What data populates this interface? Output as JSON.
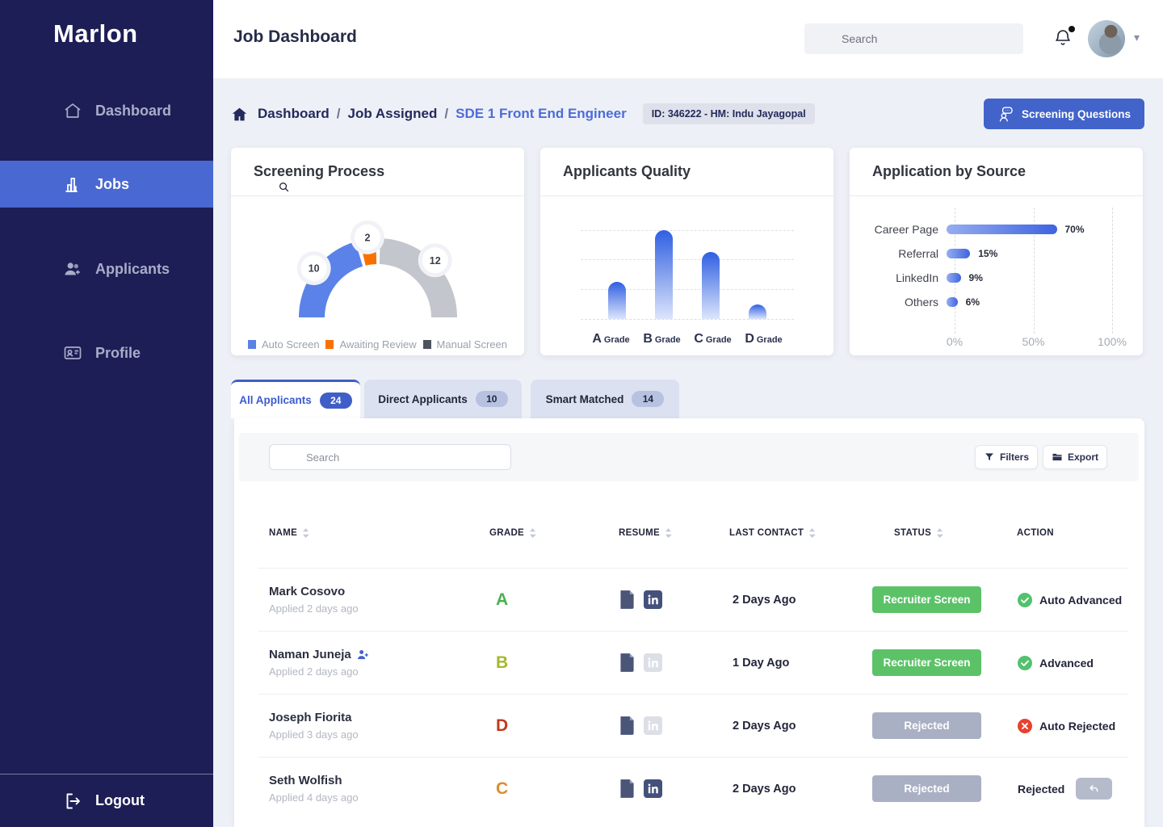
{
  "colors": {
    "accent": "#4263ca",
    "sidebar_bg": "#1d1e56",
    "active_nav": "#4a68d2",
    "link_blue": "#4d6cd9",
    "status_green": "#5cc268",
    "status_gray": "#a9b0c3",
    "content_bg": "#edf0f6"
  },
  "sidebar": {
    "logo": "Marlon",
    "items": [
      {
        "label": "Dashboard",
        "icon": "home-icon",
        "active": false
      },
      {
        "label": "Jobs",
        "icon": "bar-chart-icon",
        "active": true
      },
      {
        "label": "Applicants",
        "icon": "user-group-add-icon",
        "active": false
      },
      {
        "label": "Profile",
        "icon": "id-card-icon",
        "active": false
      }
    ],
    "logout_label": "Logout"
  },
  "topbar": {
    "title": "Job Dashboard",
    "search_placeholder": "Search"
  },
  "breadcrumb": {
    "root": "Dashboard",
    "section": "Job Assigned",
    "separator": "/",
    "current": "SDE 1 Front End Engineer",
    "id_badge": "ID: 346222 - HM: Indu Jayagopal",
    "action_label": "Screening Questions"
  },
  "chart_data": [
    {
      "type": "gauge",
      "title": "Screening Process",
      "total": 24,
      "segments": [
        {
          "label": "Auto Screen",
          "value": 10,
          "color": "#5b82e8"
        },
        {
          "label": "Awaiting Review",
          "value": 2,
          "color": "#fa7000"
        },
        {
          "label": "Manual Screen",
          "value": 12,
          "color": "#c3c6cc",
          "legend_color": "#4d5360"
        }
      ]
    },
    {
      "type": "bar",
      "title": "Applicants Quality",
      "categories": [
        "A",
        "B",
        "C",
        "D"
      ],
      "category_suffix": "Grade",
      "values": [
        5,
        12,
        9,
        2
      ],
      "ylim": [
        0,
        12
      ],
      "grid": "dashed-horizontal"
    },
    {
      "type": "hbar",
      "title": "Application by Source",
      "categories": [
        "Career Page",
        "Referral",
        "LinkedIn",
        "Others"
      ],
      "values": [
        70,
        15,
        9,
        6
      ],
      "value_labels": [
        "70%",
        "15%",
        "9%",
        "6%"
      ],
      "xticks": [
        "0%",
        "50%",
        "100%"
      ],
      "xlim": [
        0,
        100
      ],
      "grid": "dashed-vertical"
    }
  ],
  "tabs": [
    {
      "label": "All Applicants",
      "count": "24",
      "active": true
    },
    {
      "label": "Direct Applicants",
      "count": "10",
      "active": false
    },
    {
      "label": "Smart Matched",
      "count": "14",
      "active": false
    }
  ],
  "toolbar": {
    "search_placeholder": "Search",
    "filters_label": "Filters",
    "export_label": "Export"
  },
  "table": {
    "columns": [
      {
        "label": "NAME",
        "sortable": true
      },
      {
        "label": "GRADE",
        "sortable": true
      },
      {
        "label": "RESUME",
        "sortable": true
      },
      {
        "label": "LAST CONTACT",
        "sortable": true
      },
      {
        "label": "STATUS",
        "sortable": true
      },
      {
        "label": "ACTION",
        "sortable": false
      }
    ],
    "rows": [
      {
        "name": "Mark Cosovo",
        "applied": "Applied 2 days ago",
        "name_icon": false,
        "grade": "A",
        "grade_color": "#4caf50",
        "resume_doc": true,
        "resume_linkedin_active": true,
        "last_contact": "2 Days Ago",
        "status_label": "Recruiter Screen",
        "status_color": "#5cc268",
        "action_icon": "check",
        "action_label": "Auto Advanced",
        "action_undo": false
      },
      {
        "name": "Naman Juneja",
        "applied": "Applied 2 days ago",
        "name_icon": true,
        "grade": "B",
        "grade_color": "#a6b72e",
        "resume_doc": true,
        "resume_linkedin_active": false,
        "last_contact": "1 Day Ago",
        "status_label": "Recruiter Screen",
        "status_color": "#5cc268",
        "action_icon": "check",
        "action_label": "Advanced",
        "action_undo": false
      },
      {
        "name": "Joseph Fiorita",
        "applied": "Applied 3 days ago",
        "name_icon": false,
        "grade": "D",
        "grade_color": "#c13a1f",
        "resume_doc": true,
        "resume_linkedin_active": false,
        "last_contact": "2 Days Ago",
        "status_label": "Rejected",
        "status_color": "#a9b0c3",
        "action_icon": "cross",
        "action_label": "Auto Rejected",
        "action_undo": false
      },
      {
        "name": "Seth Wolfish",
        "applied": "Applied 4 days ago",
        "name_icon": false,
        "grade": "C",
        "grade_color": "#de8c2b",
        "resume_doc": true,
        "resume_linkedin_active": true,
        "last_contact": "2 Days Ago",
        "status_label": "Rejected",
        "status_color": "#a9b0c3",
        "action_icon": "none",
        "action_label": "Rejected",
        "action_undo": true
      }
    ]
  }
}
